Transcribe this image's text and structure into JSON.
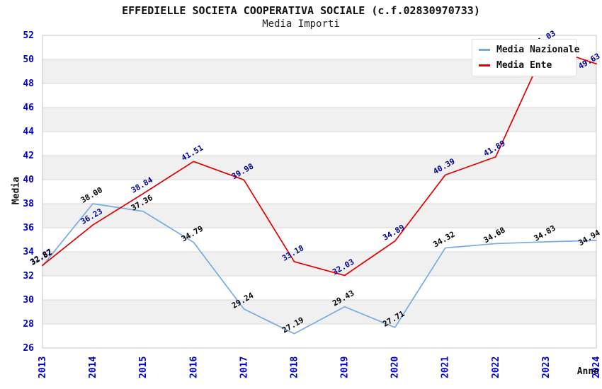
{
  "chart_data": {
    "type": "line",
    "title": "EFFEDIELLE SOCIETA COOPERATIVA SOCIALE (c.f.02830970733)",
    "subtitle": "Media Importi",
    "xlabel": "Anno",
    "ylabel": "Media",
    "categories": [
      "2013",
      "2014",
      "2015",
      "2016",
      "2017",
      "2018",
      "2019",
      "2020",
      "2021",
      "2022",
      "2023",
      "2024"
    ],
    "series": [
      {
        "name": "Media Nazionale",
        "color": "#74ACE4",
        "label_color": "#000000",
        "values": [
          32.82,
          38.0,
          37.36,
          34.79,
          29.24,
          27.19,
          29.43,
          27.71,
          34.32,
          34.68,
          34.83,
          34.94
        ]
      },
      {
        "name": "Media Ente",
        "color": "#E10000",
        "label_color": "#000099",
        "values": [
          32.87,
          36.23,
          38.84,
          41.51,
          39.98,
          33.18,
          32.03,
          34.89,
          40.39,
          41.89,
          51.03,
          49.63
        ]
      }
    ],
    "ylim": [
      26,
      52
    ],
    "ytick_step": 2,
    "yticks": [
      26,
      28,
      30,
      32,
      34,
      36,
      38,
      40,
      42,
      44,
      46,
      48,
      50,
      52
    ],
    "grid": true,
    "legend_position": "top-right",
    "styles": {
      "tick_color": "#0000CC",
      "band_color": "#F0F0F0",
      "grid_color": "#D9D9D9",
      "border_color": "#C4C4C4",
      "background": "#FFFFFF"
    }
  }
}
